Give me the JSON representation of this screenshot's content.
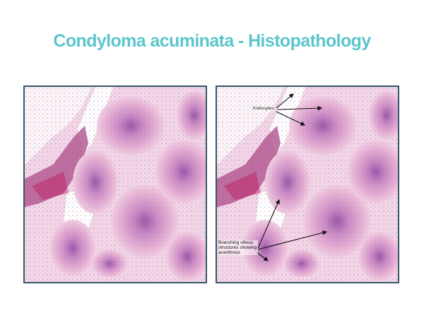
{
  "slide": {
    "title": "Condyloma acuminata - Histopathology"
  },
  "colors": {
    "title": "#5cc5cc",
    "panel_border": "#35556a",
    "tissue_pink": "#e7a9cf",
    "tissue_purple": "#8a4a9a",
    "background": "#ffffff"
  },
  "panels": {
    "left": {
      "kind": "histology-micrograph"
    },
    "right": {
      "kind": "histology-micrograph-annotated",
      "annotations": {
        "koilocytes": "Koilocytes",
        "branching": "Branching villous structures showing acanthosis"
      }
    }
  }
}
